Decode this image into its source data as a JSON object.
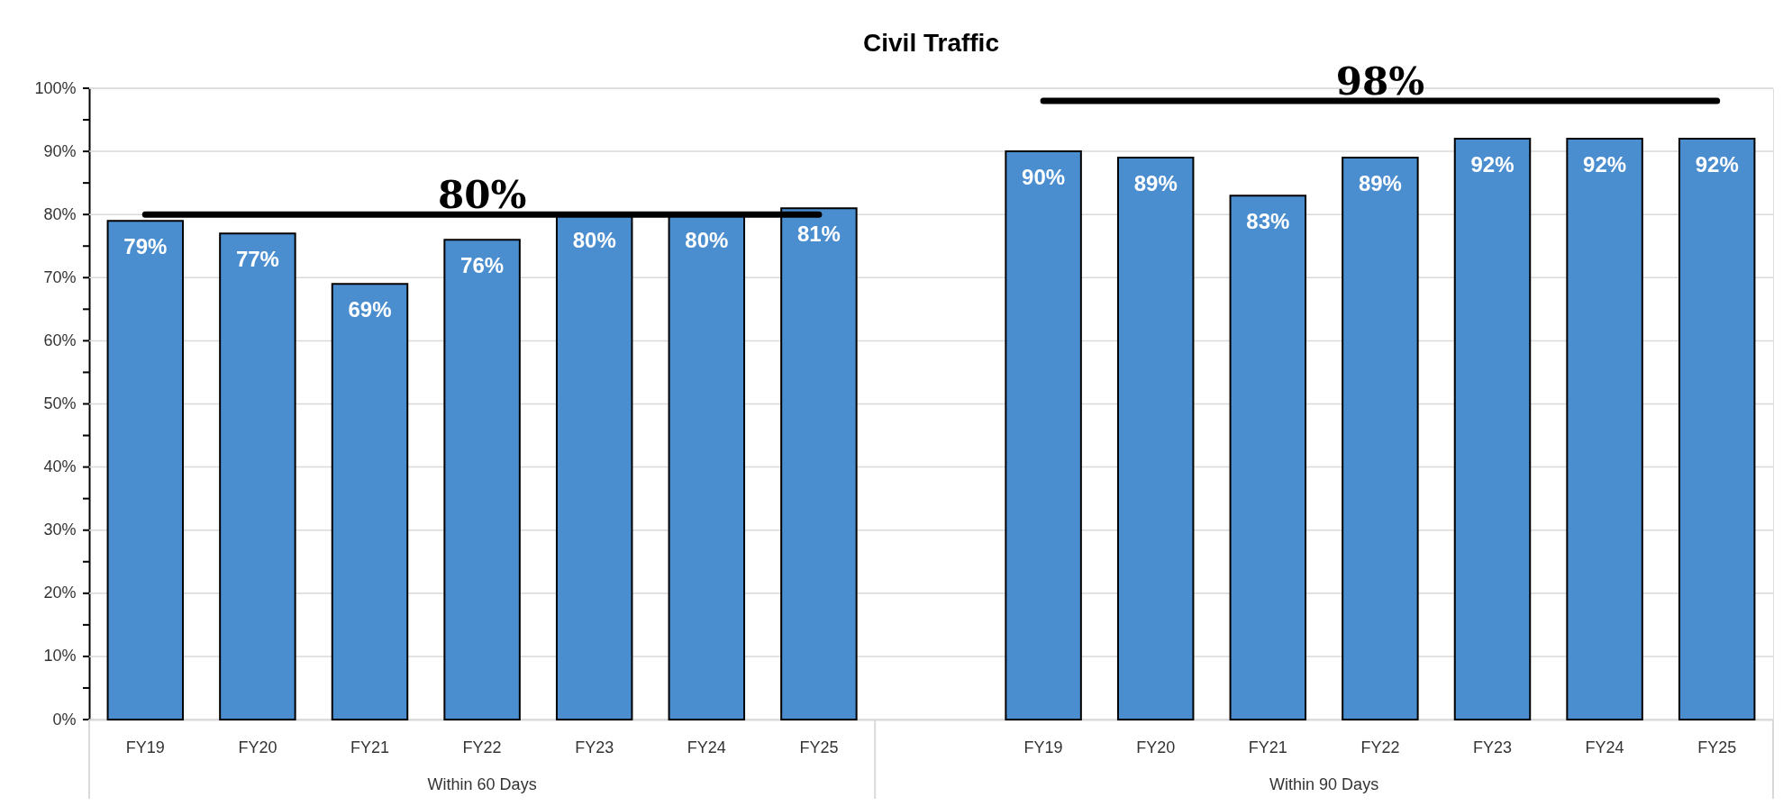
{
  "chart_data": {
    "type": "bar",
    "title": "Civil Traffic",
    "categories": [
      "FY19",
      "FY20",
      "FY21",
      "FY22",
      "FY23",
      "FY24",
      "FY25",
      null,
      "FY19",
      "FY20",
      "FY21",
      "FY22",
      "FY23",
      "FY24",
      "FY25"
    ],
    "series": [
      {
        "color": "#4a8ed0",
        "values": [
          79,
          77,
          69,
          76,
          80,
          80,
          81,
          null,
          90,
          89,
          83,
          89,
          92,
          92,
          92
        ],
        "value_labels": [
          "79%",
          "77%",
          "69%",
          "76%",
          "80%",
          "80%",
          "81%",
          null,
          "90%",
          "89%",
          "83%",
          "89%",
          "92%",
          "92%",
          "92%"
        ]
      },
      {
        "type": "line",
        "color": "#000000",
        "values": [
          80,
          80,
          80,
          80,
          80,
          80,
          80,
          null,
          null,
          null,
          null,
          null,
          null,
          null,
          null
        ],
        "value_labels": [
          null,
          null,
          null,
          "80%",
          null,
          null,
          null,
          null,
          null,
          null,
          null,
          null,
          null,
          null,
          null
        ]
      },
      {
        "type": "line",
        "color": "#000000",
        "values": [
          null,
          null,
          null,
          null,
          null,
          null,
          null,
          null,
          98,
          98,
          98,
          98,
          98,
          98,
          98
        ],
        "value_labels": [
          null,
          null,
          null,
          null,
          null,
          null,
          null,
          null,
          null,
          null,
          null,
          "98%",
          null,
          null,
          null
        ]
      }
    ],
    "ylim": [
      0,
      100
    ],
    "yticks": [
      {
        "value": 0,
        "label": "0%"
      },
      {
        "value": 5,
        "label": null
      },
      {
        "value": 10,
        "label": "10%"
      },
      {
        "value": 15,
        "label": null
      },
      {
        "value": 20,
        "label": "20%"
      },
      {
        "value": 25,
        "label": null
      },
      {
        "value": 30,
        "label": "30%"
      },
      {
        "value": 35,
        "label": null
      },
      {
        "value": 40,
        "label": "40%"
      },
      {
        "value": 45,
        "label": null
      },
      {
        "value": 50,
        "label": "50%"
      },
      {
        "value": 55,
        "label": null
      },
      {
        "value": 60,
        "label": "60%"
      },
      {
        "value": 65,
        "label": null
      },
      {
        "value": 70,
        "label": "70%"
      },
      {
        "value": 75,
        "label": null
      },
      {
        "value": 80,
        "label": "80%"
      },
      {
        "value": 85,
        "label": null
      },
      {
        "value": 90,
        "label": "90%"
      },
      {
        "value": 95,
        "label": null
      },
      {
        "value": 100,
        "label": "100%"
      }
    ],
    "grid": "y",
    "annotations": [
      "Within 60 Days",
      "Within 90 Days"
    ]
  }
}
